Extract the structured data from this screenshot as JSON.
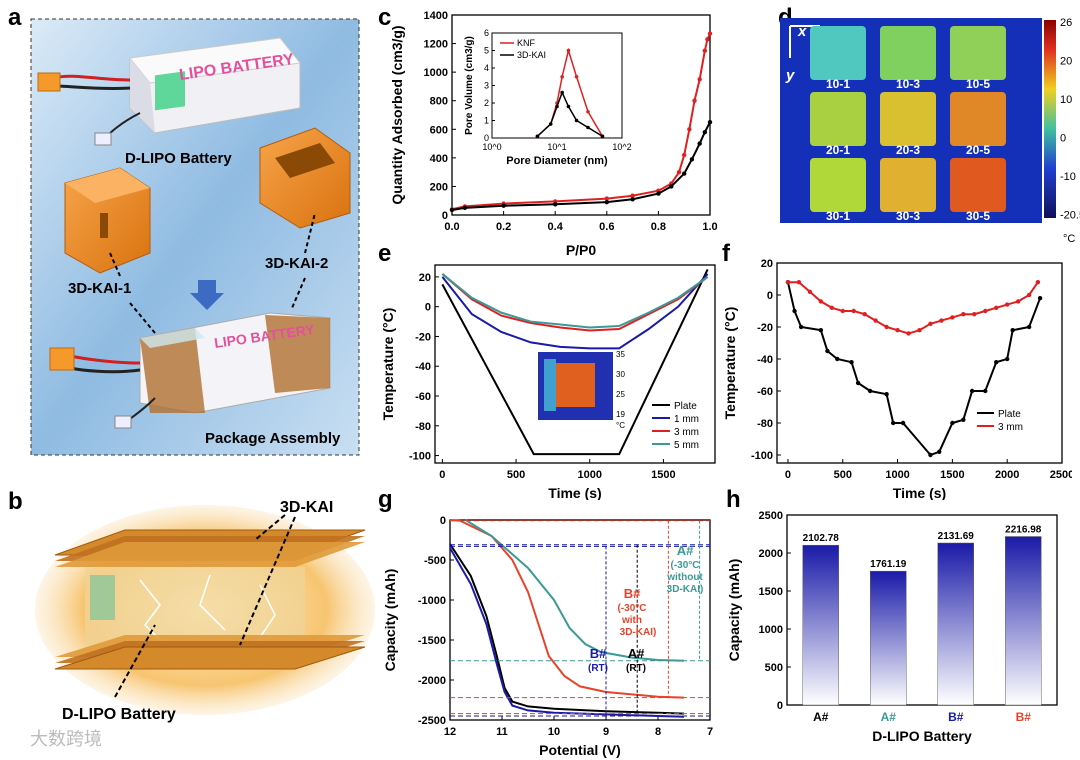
{
  "panels": {
    "a": {
      "label": "a",
      "battery_text": "LIPO BATTERY",
      "battery_name": "D-LIPO Battery",
      "part1": "3D-KAI-1",
      "part2": "3D-KAI-2",
      "assembly": "Package Assembly"
    },
    "b": {
      "label": "b",
      "kai": "3D-KAI",
      "battery": "D-LIPO Battery"
    },
    "c": {
      "label": "c"
    },
    "d": {
      "label": "d",
      "x_axis": "x",
      "y_axis": "y",
      "unit": "°C",
      "samples": [
        "10-1",
        "10-3",
        "10-5",
        "20-1",
        "20-3",
        "20-5",
        "30-1",
        "30-3",
        "30-5"
      ],
      "scale_ticks": [
        "26",
        "20",
        "10",
        "0",
        "-10",
        "-20.5"
      ]
    },
    "e": {
      "label": "e",
      "inset_ticks": [
        "35",
        "30",
        "25",
        "19"
      ],
      "inset_unit": "°C"
    },
    "f": {
      "label": "f"
    },
    "g": {
      "label": "g",
      "annotations": {
        "A_cold": "A#",
        "A_cold_note1": "(-30°C",
        "A_cold_note2": "without",
        "A_cold_note3": "3D-KAI)",
        "B_cold": "B#",
        "B_cold_note1": "(-30°C",
        "B_cold_note2": "with",
        "B_cold_note3": "3D-KAI)",
        "B_rt": "B#",
        "B_rt_note": "(RT)",
        "A_rt": "A#",
        "A_rt_note": "(RT)"
      }
    },
    "h": {
      "label": "h"
    }
  },
  "watermark": "大数跨境",
  "colors": {
    "black": "#000000",
    "blue": "#1a1aa8",
    "red": "#e8432a",
    "teal": "#3a9a96",
    "orange": "#e8872a"
  },
  "chart_data": [
    {
      "id": "c",
      "type": "line",
      "title": "",
      "xlabel": "P/P0",
      "ylabel": "Quantity Adsorbed (cm3/g)",
      "xlim": [
        0.0,
        1.0
      ],
      "ylim": [
        0,
        1400
      ],
      "xticks": [
        "0.0",
        "0.2",
        "0.4",
        "0.6",
        "0.8",
        "1.0"
      ],
      "yticks": [
        "0",
        "200",
        "400",
        "600",
        "800",
        "1000",
        "1200",
        "1400"
      ],
      "series": [
        {
          "name": "KNF",
          "color": "#e02020",
          "x": [
            0.0,
            0.05,
            0.2,
            0.4,
            0.6,
            0.7,
            0.8,
            0.85,
            0.88,
            0.9,
            0.92,
            0.94,
            0.96,
            0.98,
            0.99,
            1.0
          ],
          "y": [
            40,
            60,
            80,
            95,
            115,
            135,
            170,
            220,
            300,
            420,
            600,
            800,
            950,
            1150,
            1230,
            1270
          ]
        },
        {
          "name": "3D-KAI",
          "color": "#000000",
          "x": [
            0.0,
            0.05,
            0.2,
            0.4,
            0.6,
            0.7,
            0.8,
            0.85,
            0.9,
            0.93,
            0.96,
            0.98,
            1.0
          ],
          "y": [
            35,
            50,
            65,
            75,
            90,
            110,
            150,
            200,
            290,
            390,
            500,
            580,
            650
          ]
        }
      ],
      "inset": {
        "xlabel": "Pore Diameter (nm)",
        "ylabel": "Pore Volume (cm3/g)",
        "xscale": "log",
        "xlim": [
          1,
          100
        ],
        "ylim": [
          0,
          6
        ],
        "xticks": [
          "10^0",
          "10^1",
          "10^2"
        ],
        "yticks": [
          "0",
          "1",
          "2",
          "3",
          "4",
          "5",
          "6"
        ],
        "series": [
          {
            "name": "KNF",
            "color": "#e02020",
            "x": [
              5,
              8,
              10,
              12,
              15,
              20,
              30,
              50
            ],
            "y": [
              0.1,
              0.8,
              2.0,
              3.5,
              5.0,
              3.5,
              1.5,
              0.1
            ]
          },
          {
            "name": "3D-KAI",
            "color": "#000000",
            "x": [
              5,
              8,
              10,
              12,
              15,
              20,
              30,
              50
            ],
            "y": [
              0.1,
              0.8,
              1.8,
              2.6,
              1.8,
              1.0,
              0.6,
              0.1
            ]
          }
        ]
      }
    },
    {
      "id": "e",
      "type": "line",
      "title": "",
      "xlabel": "Time (s)",
      "ylabel": "Temperature (°C)",
      "xlim": [
        -50,
        1850
      ],
      "ylim": [
        -105,
        28
      ],
      "xticks": [
        "0",
        "500",
        "1000",
        "1500"
      ],
      "yticks": [
        "20",
        "0",
        "-20",
        "-40",
        "-60",
        "-80",
        "-100"
      ],
      "legend": "bottom-right",
      "series": [
        {
          "name": "Plate",
          "color": "#000000",
          "x": [
            0,
            620,
            1200,
            1800
          ],
          "y": [
            15,
            -99,
            -99,
            25
          ]
        },
        {
          "name": "1 mm",
          "color": "#1a1aa8",
          "x": [
            0,
            200,
            400,
            600,
            800,
            1000,
            1200,
            1400,
            1600,
            1800
          ],
          "y": [
            20,
            -5,
            -17,
            -24,
            -27,
            -28,
            -28,
            -15,
            0,
            22
          ]
        },
        {
          "name": "3 mm",
          "color": "#e02020",
          "x": [
            0,
            200,
            400,
            600,
            800,
            1000,
            1200,
            1400,
            1600,
            1800
          ],
          "y": [
            22,
            5,
            -6,
            -11,
            -14,
            -16,
            -15,
            -5,
            5,
            20
          ]
        },
        {
          "name": "5 mm",
          "color": "#3a9a96",
          "x": [
            0,
            200,
            400,
            600,
            800,
            1000,
            1200,
            1400,
            1600,
            1800
          ],
          "y": [
            22,
            6,
            -4,
            -10,
            -12,
            -14,
            -13,
            -4,
            6,
            20
          ]
        }
      ]
    },
    {
      "id": "f",
      "type": "line",
      "title": "",
      "xlabel": "Time (s)",
      "ylabel": "Temperature (°C)",
      "xlim": [
        -100,
        2500
      ],
      "ylim": [
        -105,
        20
      ],
      "xticks": [
        "0",
        "500",
        "1000",
        "1500",
        "2000",
        "2500"
      ],
      "yticks": [
        "20",
        "0",
        "-20",
        "-40",
        "-60",
        "-80",
        "-100"
      ],
      "legend": "bottom-right",
      "series": [
        {
          "name": "Plate",
          "color": "#000000",
          "x": [
            0,
            60,
            120,
            300,
            360,
            450,
            580,
            640,
            750,
            900,
            960,
            1050,
            1300,
            1380,
            1500,
            1600,
            1680,
            1800,
            1900,
            2000,
            2050,
            2200,
            2300
          ],
          "y": [
            8,
            -10,
            -20,
            -22,
            -35,
            -40,
            -42,
            -55,
            -60,
            -62,
            -80,
            -80,
            -100,
            -98,
            -80,
            -78,
            -60,
            -60,
            -42,
            -40,
            -22,
            -20,
            -2
          ]
        },
        {
          "name": "3 mm",
          "color": "#e02020",
          "x": [
            0,
            100,
            200,
            300,
            400,
            500,
            600,
            700,
            800,
            900,
            1000,
            1100,
            1200,
            1300,
            1400,
            1500,
            1600,
            1700,
            1800,
            1900,
            2000,
            2100,
            2200,
            2280
          ],
          "y": [
            8,
            8,
            2,
            -4,
            -8,
            -10,
            -10,
            -12,
            -16,
            -20,
            -22,
            -24,
            -22,
            -18,
            -16,
            -14,
            -12,
            -12,
            -10,
            -8,
            -6,
            -4,
            0,
            8
          ]
        }
      ]
    },
    {
      "id": "g",
      "type": "line",
      "title": "",
      "xlabel": "Potential (V)",
      "ylabel": "Capacity (mAh)",
      "xlim": [
        12,
        7
      ],
      "ylim": [
        -2500,
        0
      ],
      "xticks": [
        "12",
        "11",
        "10",
        "9",
        "8",
        "7"
      ],
      "yticks": [
        "0",
        "-500",
        "-1000",
        "-1500",
        "-2000",
        "-2500"
      ],
      "series": [
        {
          "name": "A# (RT)",
          "color": "#000000",
          "x": [
            12.0,
            11.6,
            11.3,
            11.1,
            10.95,
            10.8,
            10.5,
            10,
            9,
            8,
            7.5
          ],
          "y": [
            -300,
            -700,
            -1200,
            -1700,
            -2100,
            -2270,
            -2330,
            -2360,
            -2390,
            -2410,
            -2420
          ]
        },
        {
          "name": "B# (RT)",
          "color": "#1a1aa8",
          "x": [
            12.0,
            11.6,
            11.3,
            11.1,
            10.95,
            10.8,
            10.5,
            10,
            9,
            8,
            7.5
          ],
          "y": [
            -350,
            -800,
            -1300,
            -1800,
            -2150,
            -2320,
            -2380,
            -2410,
            -2430,
            -2450,
            -2460
          ]
        },
        {
          "name": "B# (-30°C with 3D-KAI)",
          "color": "#e8432a",
          "x": [
            12.0,
            11.8,
            11.2,
            10.8,
            10.5,
            10.3,
            10.1,
            9.8,
            9.5,
            9,
            8,
            7.5
          ],
          "y": [
            0,
            -10,
            -200,
            -500,
            -900,
            -1300,
            -1700,
            -1950,
            -2080,
            -2150,
            -2210,
            -2220
          ]
        },
        {
          "name": "A# (-30°C without 3D-KAI)",
          "color": "#3a9a96",
          "x": [
            11.7,
            11.2,
            10.5,
            10,
            9.7,
            9.4,
            9.1,
            8.5,
            8,
            7.5
          ],
          "y": [
            0,
            -200,
            -600,
            -1000,
            -1350,
            -1550,
            -1650,
            -1720,
            -1750,
            -1760
          ]
        }
      ],
      "reference_levels": [
        -10,
        -310,
        -330,
        -1760,
        -2220,
        -2420,
        -2450
      ]
    },
    {
      "id": "h",
      "type": "bar",
      "title": "",
      "xlabel": "D-LIPO Battery",
      "ylabel": "Capacity (mAh)",
      "categories": [
        "A#",
        "A#",
        "B#",
        "B#"
      ],
      "category_colors": [
        "#000000",
        "#3a9a96",
        "#1a1aa8",
        "#e8432a"
      ],
      "values": [
        2102.78,
        1761.19,
        2131.69,
        2216.98
      ],
      "value_labels": [
        "2102.78",
        "1761.19",
        "2131.69",
        "2216.98"
      ],
      "ylim": [
        0,
        2500
      ],
      "yticks": [
        "0",
        "500",
        "1000",
        "1500",
        "2000",
        "2500"
      ]
    }
  ]
}
